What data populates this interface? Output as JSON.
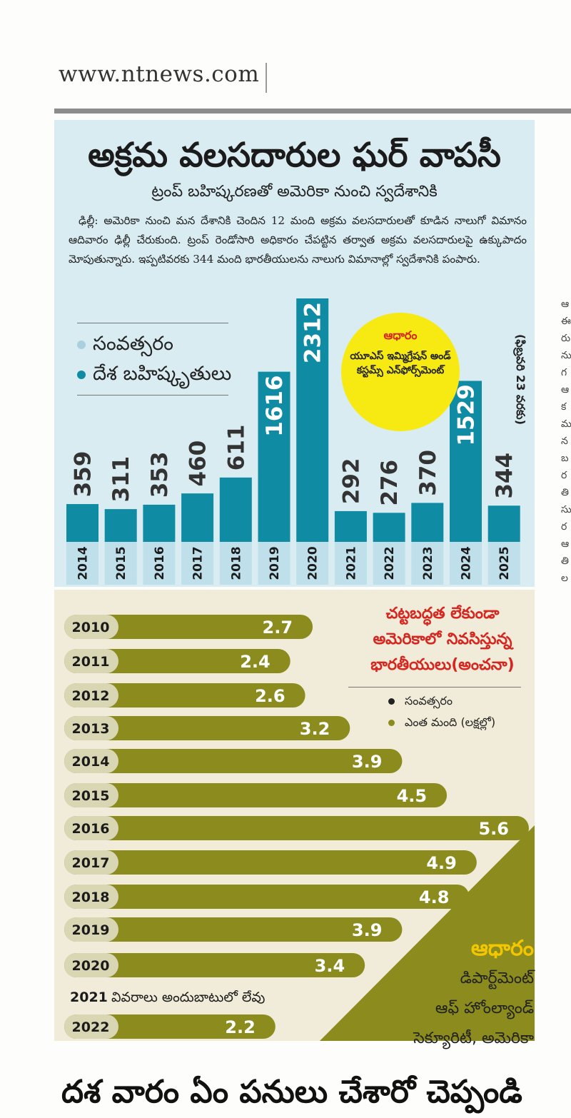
{
  "site": {
    "url": "www.ntnews.com"
  },
  "article": {
    "headline": "అక్రమ వలసదారుల ఘర్ వాపసీ",
    "subheadline": "ట్రంప్ బహిష్కరణతో అమెరికా నుంచి స్వదేశానికి",
    "body": "ఢిల్లీ: అమెరికా నుంచి మన దేశానికి చెందిన 12 మంది అక్రమ వలసదారులతో కూడిన నాలుగో విమానం ఆదివారం ఢిల్లీ చేరుకుంది. ట్రంప్ రెండోసారి అధికారం చేపట్టిన తర్వాత అక్రమ వలసదారులపై ఉక్కుపాదం మోపుతున్నారు. ఇప్పటివరకు 344 మంది భారతీయులను నాలుగు విమానాల్లో స్వదేశానికి పంపారు.",
    "next_headline": "దశ వారం ఏం పనులు చేశారో చెప్పండి"
  },
  "top_legend": {
    "year": "సంవత్సరం",
    "deportees": "దేశ బహిష్కృతులు"
  },
  "top_source": {
    "title": "ఆధారం",
    "body": "యూఎస్ ఇమ్మిగ్రేషన్ అండ్ కస్టమ్స్ ఎన్‌ఫోర్స్‌మెంట్"
  },
  "date_note": "(ఫిబ్రవరి 23 వరకు)",
  "bottom_title": "చట్టబద్ధత లేకుండా అమెరికాలో నివసిస్తున్న భారతీయులు(అంచనా)",
  "bottom_legend": {
    "year": "సంవత్సరం",
    "count": "ఎంత మంది (లక్షల్లో)"
  },
  "bottom_source": {
    "title": "ఆధారం",
    "line1": "డిపార్ట్‌మెంట్",
    "line2": "ఆఫ్ హోంల్యాండ్",
    "line3": "సెక్యూరిటీ, అమెరికా"
  },
  "side_text": "ఆ ఈ రు ను గ ఆ క ము న బ ర తి సు ర ఆ తి ల",
  "colors": {
    "teal": "#0f8ca3",
    "olive": "#8b8b1e",
    "yellow": "#f7ea12",
    "red": "#d7261f",
    "blue_bg": "#d9ecf2",
    "cream_bg": "#f0ecd9"
  },
  "chart_data": [
    {
      "type": "bar",
      "categories": [
        "2014",
        "2015",
        "2016",
        "2017",
        "2018",
        "2019",
        "2020",
        "2021",
        "2022",
        "2023",
        "2024",
        "2025"
      ],
      "values": [
        359,
        311,
        353,
        460,
        611,
        1616,
        2312,
        292,
        276,
        370,
        1529,
        344
      ],
      "ylim": [
        0,
        2312
      ]
    },
    {
      "type": "bar",
      "orientation": "horizontal",
      "categories": [
        "2010",
        "2011",
        "2012",
        "2013",
        "2014",
        "2015",
        "2016",
        "2017",
        "2018",
        "2019",
        "2020",
        "2021",
        "2022"
      ],
      "values": [
        2.7,
        2.4,
        2.6,
        3.2,
        3.9,
        4.5,
        5.6,
        4.9,
        4.8,
        3.9,
        3.4,
        null,
        2.2
      ],
      "value_labels": [
        "2.7",
        "2.4",
        "2.6",
        "3.2",
        "3.9",
        "4.5",
        "5.6",
        "4.9",
        "4.8",
        "3.9",
        "3.4",
        "",
        "2.2"
      ],
      "missing_note": "వివరాలు అందుబాటులో లేవు",
      "xlim": [
        0,
        5.6
      ]
    }
  ]
}
